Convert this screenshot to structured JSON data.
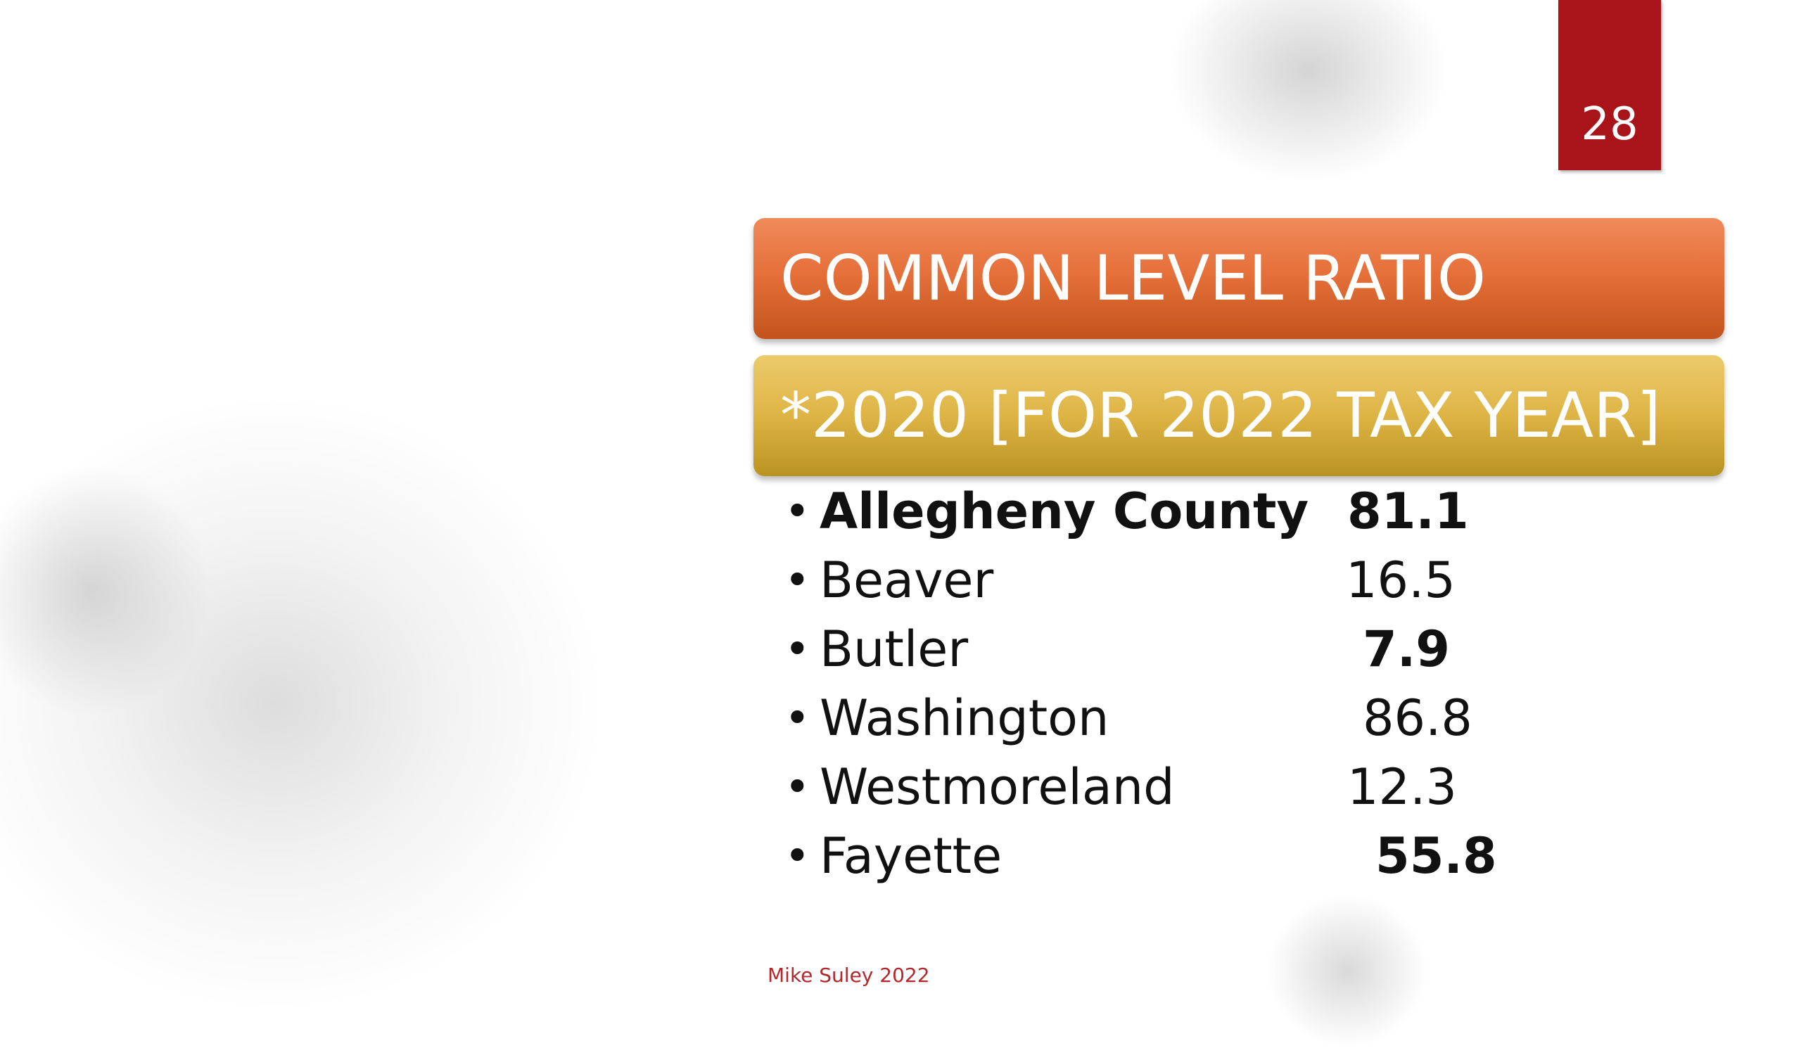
{
  "slide": {
    "page_number": "28",
    "title": "COMMON LEVEL RATIO",
    "subtitle": "*2020 [FOR 2022 TAX YEAR]",
    "footer": "Mike Suley 2022"
  },
  "ratios": [
    {
      "county": "Allegheny County",
      "value": "81.1",
      "bold_county": true,
      "bold_value": true
    },
    {
      "county": "Beaver",
      "value": "16.5",
      "bold_county": false,
      "bold_value": false
    },
    {
      "county": "Butler",
      "value": "7.9",
      "bold_county": false,
      "bold_value": true
    },
    {
      "county": "Washington",
      "value": "86.8",
      "bold_county": false,
      "bold_value": false
    },
    {
      "county": "Westmoreland",
      "value": "12.3",
      "bold_county": false,
      "bold_value": false
    },
    {
      "county": "Fayette",
      "value": "55.8",
      "bold_county": false,
      "bold_value": true
    }
  ],
  "colors": {
    "page_tab": "#a8141a",
    "title_band": "#e6703a",
    "subtitle_band": "#deb445",
    "footer_text": "#b2282c"
  }
}
